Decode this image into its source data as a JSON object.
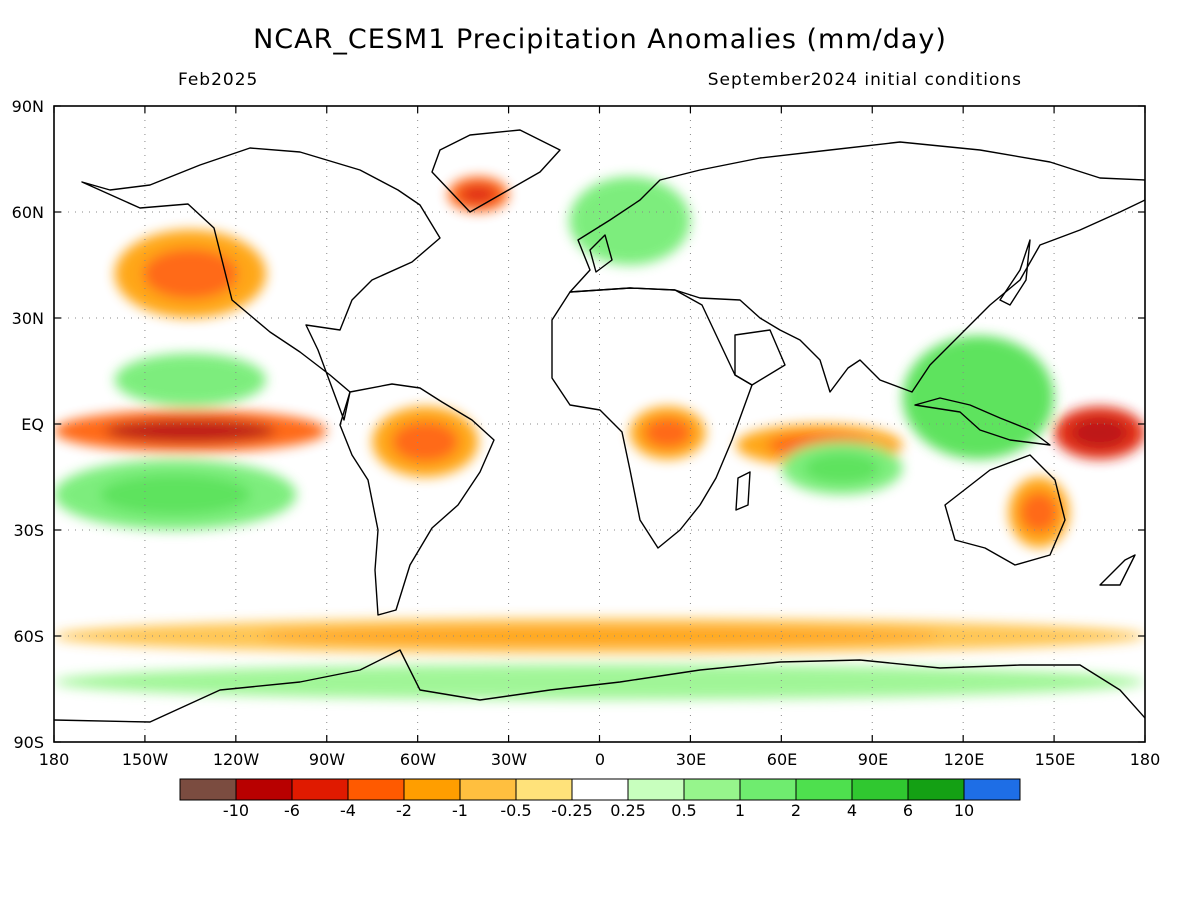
{
  "header": {
    "title": "NCAR_CESM1 Precipitation Anomalies (mm/day)",
    "valid_month": "Feb2025",
    "init": "September2024 initial conditions"
  },
  "axes": {
    "lat_labels": [
      "90N",
      "60N",
      "30N",
      "EQ",
      "30S",
      "60S",
      "90S"
    ],
    "lon_labels": [
      "180",
      "150W",
      "120W",
      "90W",
      "60W",
      "30W",
      "0",
      "30E",
      "60E",
      "90E",
      "120E",
      "150E",
      "180"
    ]
  },
  "colorbar": {
    "colors": [
      "#7b4c40",
      "#b80000",
      "#e01a00",
      "#ff5a00",
      "#ff9e00",
      "#ffbf3f",
      "#ffe27a",
      "#ffffff",
      "#c8ffbe",
      "#96f58c",
      "#6fec6f",
      "#4ee04e",
      "#30c830",
      "#14a014",
      "#1e6ee6"
    ],
    "labels": [
      "-10",
      "-6",
      "-4",
      "-2",
      "-1",
      "-0.5",
      "-0.25",
      "0.25",
      "0.5",
      "1",
      "2",
      "4",
      "6",
      "10"
    ]
  },
  "chart_data": {
    "type": "heatmap",
    "title": "NCAR_CESM1 Precipitation Anomalies (mm/day)",
    "subtitle_left": "Feb2025",
    "subtitle_right": "September2024 initial conditions",
    "units": "mm/day",
    "lon_range": [
      -180,
      180
    ],
    "lat_range": [
      -90,
      90
    ],
    "grid": true,
    "levels": [
      -10,
      -6,
      -4,
      -2,
      -1,
      -0.5,
      -0.25,
      0.25,
      0.5,
      1,
      2,
      4,
      6,
      10
    ],
    "anomaly_regions": [
      {
        "lon_range": [
          -180,
          -90
        ],
        "lat_range": [
          -8,
          4
        ],
        "value": -4
      },
      {
        "lon_range": [
          150,
          180
        ],
        "lat_range": [
          -10,
          5
        ],
        "value": -5
      },
      {
        "lon_range": [
          -75,
          -40
        ],
        "lat_range": [
          -15,
          5
        ],
        "value": -2
      },
      {
        "lon_range": [
          45,
          100
        ],
        "lat_range": [
          -12,
          0
        ],
        "value": -2
      },
      {
        "lon_range": [
          10,
          35
        ],
        "lat_range": [
          -10,
          5
        ],
        "value": -1.5
      },
      {
        "lon_range": [
          135,
          155
        ],
        "lat_range": [
          -35,
          -15
        ],
        "value": -1.5
      },
      {
        "lon_range": [
          -160,
          -110
        ],
        "lat_range": [
          30,
          55
        ],
        "value": -1.5
      },
      {
        "lon_range": [
          -50,
          -30
        ],
        "lat_range": [
          60,
          70
        ],
        "value": -3
      },
      {
        "lon_range": [
          -180,
          180
        ],
        "lat_range": [
          -65,
          -55
        ],
        "value": -1
      },
      {
        "lon_range": [
          -180,
          -100
        ],
        "lat_range": [
          -30,
          -10
        ],
        "value": 1.5
      },
      {
        "lon_range": [
          100,
          150
        ],
        "lat_range": [
          -10,
          25
        ],
        "value": 2
      },
      {
        "lon_range": [
          60,
          100
        ],
        "lat_range": [
          -20,
          -5
        ],
        "value": 1.5
      },
      {
        "lon_range": [
          -10,
          30
        ],
        "lat_range": [
          45,
          70
        ],
        "value": 1
      },
      {
        "lon_range": [
          -160,
          -110
        ],
        "lat_range": [
          5,
          20
        ],
        "value": 1
      },
      {
        "lon_range": [
          -180,
          180
        ],
        "lat_range": [
          -78,
          -68
        ],
        "value": 0.5
      }
    ]
  }
}
